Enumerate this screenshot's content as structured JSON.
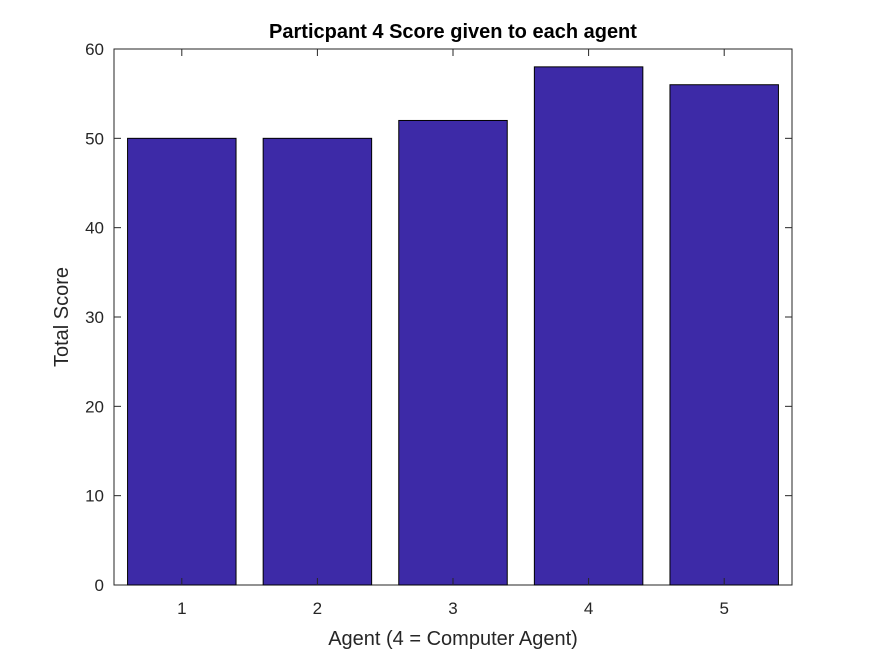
{
  "chart_data": {
    "type": "bar",
    "title": "Particpant 4 Score given to each agent",
    "xlabel": "Agent (4 = Computer Agent)",
    "ylabel": "Total Score",
    "categories": [
      "1",
      "2",
      "3",
      "4",
      "5"
    ],
    "values": [
      50,
      50,
      52,
      58,
      56
    ],
    "ylim": [
      0,
      60
    ],
    "xlim": [
      0.5,
      5.5
    ],
    "yticks": [
      0,
      10,
      20,
      30,
      40,
      50,
      60
    ],
    "bar_color": "#3d2aa7",
    "grid": false,
    "legend": "none"
  }
}
